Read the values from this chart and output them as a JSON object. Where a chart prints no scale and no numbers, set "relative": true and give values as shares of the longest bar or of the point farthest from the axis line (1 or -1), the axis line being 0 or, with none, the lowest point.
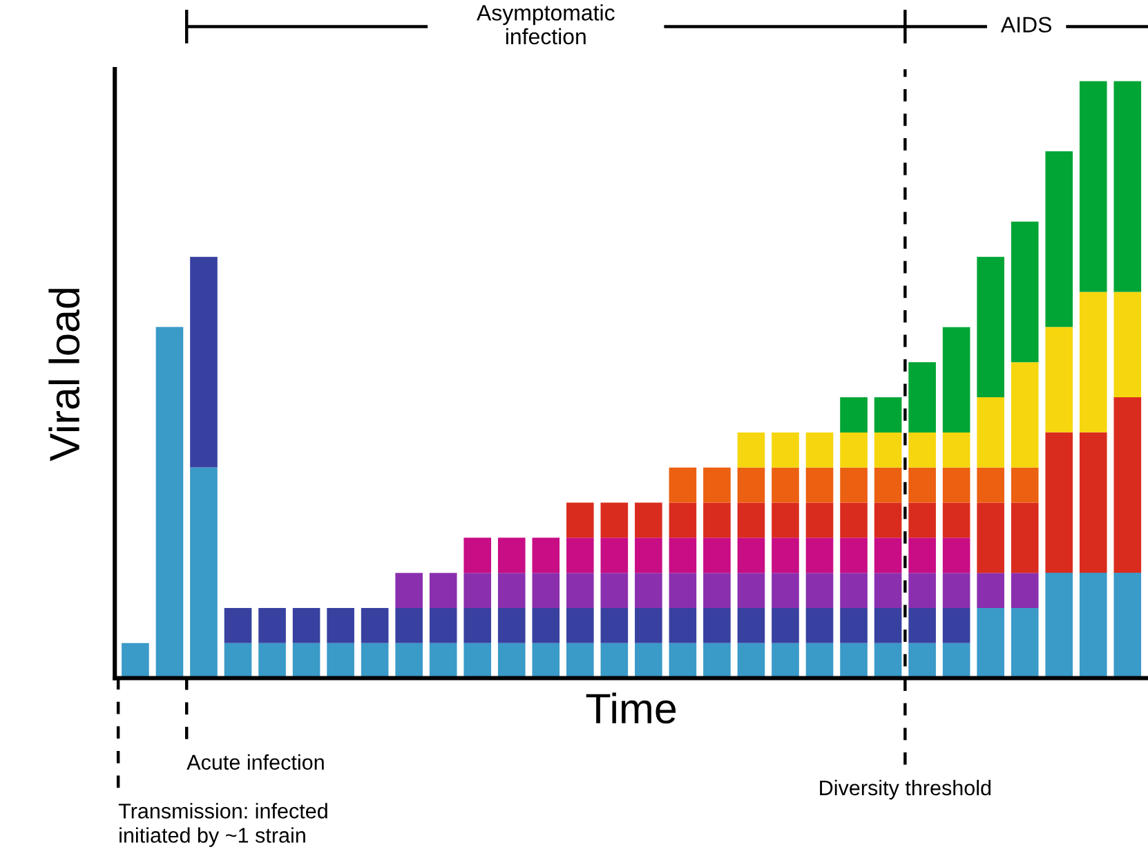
{
  "chart_data": {
    "type": "bar",
    "stacked": true,
    "relative": true,
    "xlabel": "Time",
    "ylabel": "Viral load",
    "grid": false,
    "legend": false,
    "categories": [
      null,
      null,
      null,
      null,
      null,
      null,
      null,
      null,
      null,
      null,
      null,
      null,
      null,
      null,
      null,
      null,
      null,
      null,
      null,
      null,
      null,
      null,
      null,
      null,
      null,
      null,
      null,
      null,
      null,
      null
    ],
    "series": [
      {
        "color": "#3a9ac8",
        "values": [
          0.0588,
          0.5882,
          0.3529,
          0.0588,
          0.0588,
          0.0588,
          0.0588,
          0.0588,
          0.0588,
          0.0588,
          0.0588,
          0.0588,
          0.0588,
          0.0588,
          0.0588,
          0.0588,
          0.0588,
          0.0588,
          0.0588,
          0.0588,
          0.0588,
          0.0588,
          0.0588,
          0.0588,
          0.0588,
          0.1176,
          0.1176,
          0.1765,
          0.1765,
          0.1765
        ]
      },
      {
        "color": "#3841a0",
        "values": [
          0,
          0,
          0.3529,
          0.0588,
          0.0588,
          0.0588,
          0.0588,
          0.0588,
          0.0588,
          0.0588,
          0.0588,
          0.0588,
          0.0588,
          0.0588,
          0.0588,
          0.0588,
          0.0588,
          0.0588,
          0.0588,
          0.0588,
          0.0588,
          0.0588,
          0.0588,
          0.0588,
          0.0588,
          0,
          0,
          0,
          0,
          0
        ]
      },
      {
        "color": "#8a2fae",
        "values": [
          0,
          0,
          0,
          0,
          0,
          0,
          0,
          0,
          0.0588,
          0.0588,
          0.0588,
          0.0588,
          0.0588,
          0.0588,
          0.0588,
          0.0588,
          0.0588,
          0.0588,
          0.0588,
          0.0588,
          0.0588,
          0.0588,
          0.0588,
          0.0588,
          0.0588,
          0.0588,
          0.0588,
          0,
          0,
          0
        ]
      },
      {
        "color": "#c80d85",
        "values": [
          0,
          0,
          0,
          0,
          0,
          0,
          0,
          0,
          0,
          0,
          0.0588,
          0.0588,
          0.0588,
          0.0588,
          0.0588,
          0.0588,
          0.0588,
          0.0588,
          0.0588,
          0.0588,
          0.0588,
          0.0588,
          0.0588,
          0.0588,
          0.0588,
          0,
          0,
          0,
          0,
          0
        ]
      },
      {
        "color": "#da2c1e",
        "values": [
          0,
          0,
          0,
          0,
          0,
          0,
          0,
          0,
          0,
          0,
          0,
          0,
          0,
          0.0588,
          0.0588,
          0.0588,
          0.0588,
          0.0588,
          0.0588,
          0.0588,
          0.0588,
          0.0588,
          0.0588,
          0.0588,
          0.0588,
          0.1176,
          0.1176,
          0.2353,
          0.2353,
          0.2941
        ]
      },
      {
        "color": "#eb6011",
        "values": [
          0,
          0,
          0,
          0,
          0,
          0,
          0,
          0,
          0,
          0,
          0,
          0,
          0,
          0,
          0,
          0,
          0.0588,
          0.0588,
          0.0588,
          0.0588,
          0.0588,
          0.0588,
          0.0588,
          0.0588,
          0.0588,
          0.0588,
          0.0588,
          0,
          0,
          0
        ]
      },
      {
        "color": "#f6d60f",
        "values": [
          0,
          0,
          0,
          0,
          0,
          0,
          0,
          0,
          0,
          0,
          0,
          0,
          0,
          0,
          0,
          0,
          0,
          0,
          0.0588,
          0.0588,
          0.0588,
          0.0588,
          0.0588,
          0.0588,
          0.0588,
          0.1176,
          0.1765,
          0.1765,
          0.2353,
          0.1765
        ]
      },
      {
        "color": "#00a535",
        "values": [
          0,
          0,
          0,
          0,
          0,
          0,
          0,
          0,
          0,
          0,
          0,
          0,
          0,
          0,
          0,
          0,
          0,
          0,
          0,
          0,
          0,
          0.0588,
          0.0588,
          0.1176,
          0.1765,
          0.2353,
          0.2353,
          0.2941,
          0.3529,
          0.3529
        ]
      }
    ],
    "annotations": [
      "Asymptomatic\ninfection",
      "AIDS",
      "Transmission: infected\ninitiated by ~1 strain",
      "Acute infection",
      "Diversity threshold"
    ]
  }
}
